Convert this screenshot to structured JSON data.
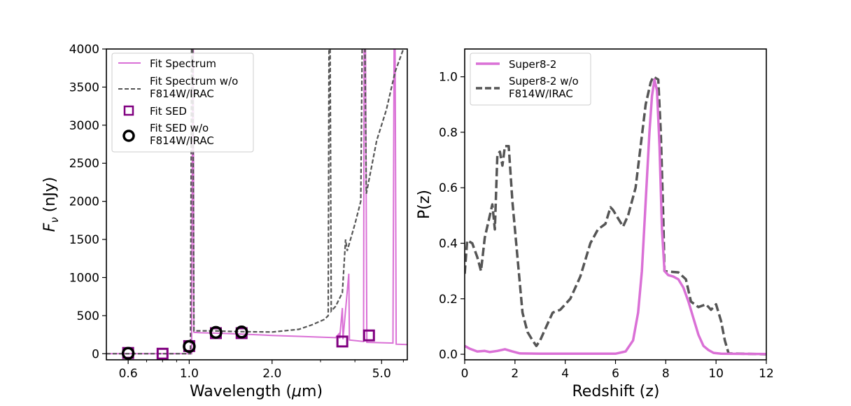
{
  "chart_data": [
    {
      "type": "line",
      "xscale": "log",
      "xlabel": "Wavelength (μm)",
      "xlabel_plain": "Wavelength (",
      "xlabel_mu": "μ",
      "xlabel_unit": "m)",
      "ylabel_f": "F",
      "ylabel_nu": "ν",
      "ylabel_unit": " (nJy)",
      "xlim": [
        0.5,
        6.2
      ],
      "ylim": [
        -80,
        4000
      ],
      "xticks": [
        {
          "value": 0.6,
          "label": "0.6"
        },
        {
          "value": 1.0,
          "label": "1.0"
        },
        {
          "value": 2.0,
          "label": "2.0"
        },
        {
          "value": 5.0,
          "label": "5.0"
        }
      ],
      "yticks": [
        {
          "value": 0,
          "label": "0"
        },
        {
          "value": 500,
          "label": "500"
        },
        {
          "value": 1000,
          "label": "1000"
        },
        {
          "value": 1500,
          "label": "1500"
        },
        {
          "value": 2000,
          "label": "2000"
        },
        {
          "value": 2500,
          "label": "2500"
        },
        {
          "value": 3000,
          "label": "3000"
        },
        {
          "value": 3500,
          "label": "3500"
        },
        {
          "value": 4000,
          "label": "4000"
        }
      ],
      "legend": {
        "position": "top-left",
        "entries": [
          {
            "label": "Fit Spectrum",
            "style": "solid-line",
            "color": "#DA70D6"
          },
          {
            "label": "Fit Spectrum w/o",
            "label2": "F814W/IRAC",
            "style": "dashed-line",
            "color": "#555555"
          },
          {
            "label": "Fit SED",
            "style": "square",
            "color": "#800080"
          },
          {
            "label": "Fit SED w/o",
            "label2": "F814W/IRAC",
            "style": "circle",
            "color": "#000000"
          }
        ]
      },
      "series": [
        {
          "name": "Fit Spectrum",
          "color": "#DA70D6",
          "points": [
            [
              0.5,
              0
            ],
            [
              1.02,
              0
            ],
            [
              1.03,
              4000
            ],
            [
              1.035,
              4000
            ],
            [
              1.04,
              280
            ],
            [
              1.1,
              275
            ],
            [
              1.3,
              268
            ],
            [
              1.6,
              255
            ],
            [
              2.0,
              240
            ],
            [
              2.5,
              228
            ],
            [
              3.0,
              218
            ],
            [
              3.4,
              210
            ],
            [
              3.5,
              260
            ],
            [
              3.52,
              200
            ],
            [
              3.6,
              600
            ],
            [
              3.62,
              190
            ],
            [
              3.8,
              1050
            ],
            [
              3.82,
              180
            ],
            [
              4.3,
              160
            ],
            [
              4.32,
              4000
            ],
            [
              4.37,
              4000
            ],
            [
              4.42,
              150
            ],
            [
              5.5,
              140
            ],
            [
              5.55,
              4000
            ],
            [
              5.6,
              4000
            ],
            [
              5.65,
              125
            ],
            [
              6.2,
              120
            ]
          ]
        },
        {
          "name": "Fit Spectrum w/o F814W/IRAC",
          "color": "#555555",
          "points": [
            [
              0.5,
              0
            ],
            [
              1.01,
              0
            ],
            [
              1.02,
              4000
            ],
            [
              1.03,
              4000
            ],
            [
              1.04,
              300
            ],
            [
              1.2,
              300
            ],
            [
              1.5,
              290
            ],
            [
              2.0,
              285
            ],
            [
              2.5,
              320
            ],
            [
              2.8,
              380
            ],
            [
              3.1,
              450
            ],
            [
              3.2,
              500
            ],
            [
              3.22,
              4000
            ],
            [
              3.25,
              4000
            ],
            [
              3.28,
              560
            ],
            [
              3.4,
              620
            ],
            [
              3.6,
              800
            ],
            [
              3.7,
              1500
            ],
            [
              3.75,
              1350
            ],
            [
              4.0,
              1700
            ],
            [
              4.2,
              2000
            ],
            [
              4.25,
              4000
            ],
            [
              4.35,
              4000
            ],
            [
              4.4,
              2100
            ],
            [
              4.8,
              2800
            ],
            [
              5.2,
              3200
            ],
            [
              5.6,
              3700
            ],
            [
              6.0,
              4000
            ]
          ]
        }
      ],
      "markers": {
        "fit_sed": {
          "x": [
            0.6,
            0.8,
            1.0,
            1.25,
            1.55,
            3.6,
            4.5
          ],
          "y": [
            10,
            0,
            100,
            270,
            270,
            160,
            240
          ]
        },
        "fit_sed_wo": {
          "x": [
            0.6,
            1.0,
            1.25,
            1.55
          ],
          "y": [
            5,
            95,
            280,
            285
          ]
        }
      }
    },
    {
      "type": "line",
      "xlabel": "Redshift (z)",
      "ylabel": "P(z)",
      "xlim": [
        0,
        12
      ],
      "ylim": [
        -0.02,
        1.1
      ],
      "xticks": [
        {
          "value": 0,
          "label": "0"
        },
        {
          "value": 2,
          "label": "2"
        },
        {
          "value": 4,
          "label": "4"
        },
        {
          "value": 6,
          "label": "6"
        },
        {
          "value": 8,
          "label": "8"
        },
        {
          "value": 10,
          "label": "10"
        },
        {
          "value": 12,
          "label": "12"
        }
      ],
      "yticks": [
        {
          "value": 0.0,
          "label": "0.0"
        },
        {
          "value": 0.2,
          "label": "0.2"
        },
        {
          "value": 0.4,
          "label": "0.4"
        },
        {
          "value": 0.6,
          "label": "0.6"
        },
        {
          "value": 0.8,
          "label": "0.8"
        },
        {
          "value": 1.0,
          "label": "1.0"
        }
      ],
      "legend": {
        "position": "top-left",
        "entries": [
          {
            "label": "Super8-2",
            "style": "solid-line",
            "color": "#DA70D6"
          },
          {
            "label": "Super8-2 w/o",
            "label2": "F814W/IRAC",
            "style": "dashed-line",
            "color": "#555555"
          }
        ]
      },
      "series": [
        {
          "name": "Super8-2",
          "color": "#DA70D6",
          "points": [
            [
              0,
              0.03
            ],
            [
              0.2,
              0.02
            ],
            [
              0.5,
              0.01
            ],
            [
              0.8,
              0.012
            ],
            [
              1.0,
              0.008
            ],
            [
              1.3,
              0.012
            ],
            [
              1.6,
              0.018
            ],
            [
              1.9,
              0.01
            ],
            [
              2.2,
              0.003
            ],
            [
              3,
              0.002
            ],
            [
              4,
              0.002
            ],
            [
              5,
              0.002
            ],
            [
              6,
              0.002
            ],
            [
              6.4,
              0.01
            ],
            [
              6.7,
              0.05
            ],
            [
              6.9,
              0.15
            ],
            [
              7.05,
              0.3
            ],
            [
              7.2,
              0.55
            ],
            [
              7.35,
              0.8
            ],
            [
              7.45,
              0.93
            ],
            [
              7.55,
              0.99
            ],
            [
              7.65,
              0.95
            ],
            [
              7.75,
              0.75
            ],
            [
              7.85,
              0.45
            ],
            [
              7.95,
              0.3
            ],
            [
              8.1,
              0.285
            ],
            [
              8.3,
              0.28
            ],
            [
              8.5,
              0.27
            ],
            [
              8.7,
              0.24
            ],
            [
              8.9,
              0.19
            ],
            [
              9.1,
              0.13
            ],
            [
              9.3,
              0.07
            ],
            [
              9.5,
              0.03
            ],
            [
              9.7,
              0.015
            ],
            [
              9.9,
              0.005
            ],
            [
              10.2,
              0.002
            ],
            [
              12,
              0.001
            ]
          ]
        },
        {
          "name": "Super8-2 w/o F814W/IRAC",
          "color": "#555555",
          "points": [
            [
              0,
              0.29
            ],
            [
              0.1,
              0.41
            ],
            [
              0.3,
              0.4
            ],
            [
              0.5,
              0.35
            ],
            [
              0.65,
              0.3
            ],
            [
              0.8,
              0.42
            ],
            [
              1.0,
              0.5
            ],
            [
              1.1,
              0.54
            ],
            [
              1.2,
              0.45
            ],
            [
              1.3,
              0.72
            ],
            [
              1.4,
              0.73
            ],
            [
              1.5,
              0.68
            ],
            [
              1.6,
              0.75
            ],
            [
              1.75,
              0.75
            ],
            [
              1.9,
              0.55
            ],
            [
              2.1,
              0.35
            ],
            [
              2.3,
              0.15
            ],
            [
              2.5,
              0.08
            ],
            [
              2.7,
              0.05
            ],
            [
              2.85,
              0.03
            ],
            [
              3.0,
              0.05
            ],
            [
              3.2,
              0.09
            ],
            [
              3.5,
              0.15
            ],
            [
              3.8,
              0.16
            ],
            [
              4.2,
              0.2
            ],
            [
              4.6,
              0.28
            ],
            [
              5.0,
              0.4
            ],
            [
              5.3,
              0.45
            ],
            [
              5.6,
              0.47
            ],
            [
              5.8,
              0.53
            ],
            [
              5.9,
              0.52
            ],
            [
              6.1,
              0.49
            ],
            [
              6.3,
              0.46
            ],
            [
              6.5,
              0.5
            ],
            [
              6.8,
              0.6
            ],
            [
              7.0,
              0.75
            ],
            [
              7.2,
              0.9
            ],
            [
              7.4,
              0.98
            ],
            [
              7.5,
              1.0
            ],
            [
              7.7,
              0.99
            ],
            [
              7.8,
              0.8
            ],
            [
              7.9,
              0.5
            ],
            [
              7.95,
              0.3
            ],
            [
              8.1,
              0.298
            ],
            [
              8.5,
              0.295
            ],
            [
              8.8,
              0.27
            ],
            [
              9.0,
              0.19
            ],
            [
              9.3,
              0.17
            ],
            [
              9.6,
              0.18
            ],
            [
              9.8,
              0.16
            ],
            [
              10.0,
              0.18
            ],
            [
              10.2,
              0.12
            ],
            [
              10.35,
              0.05
            ],
            [
              10.5,
              0.003
            ],
            [
              12,
              0.0
            ]
          ]
        }
      ]
    }
  ]
}
